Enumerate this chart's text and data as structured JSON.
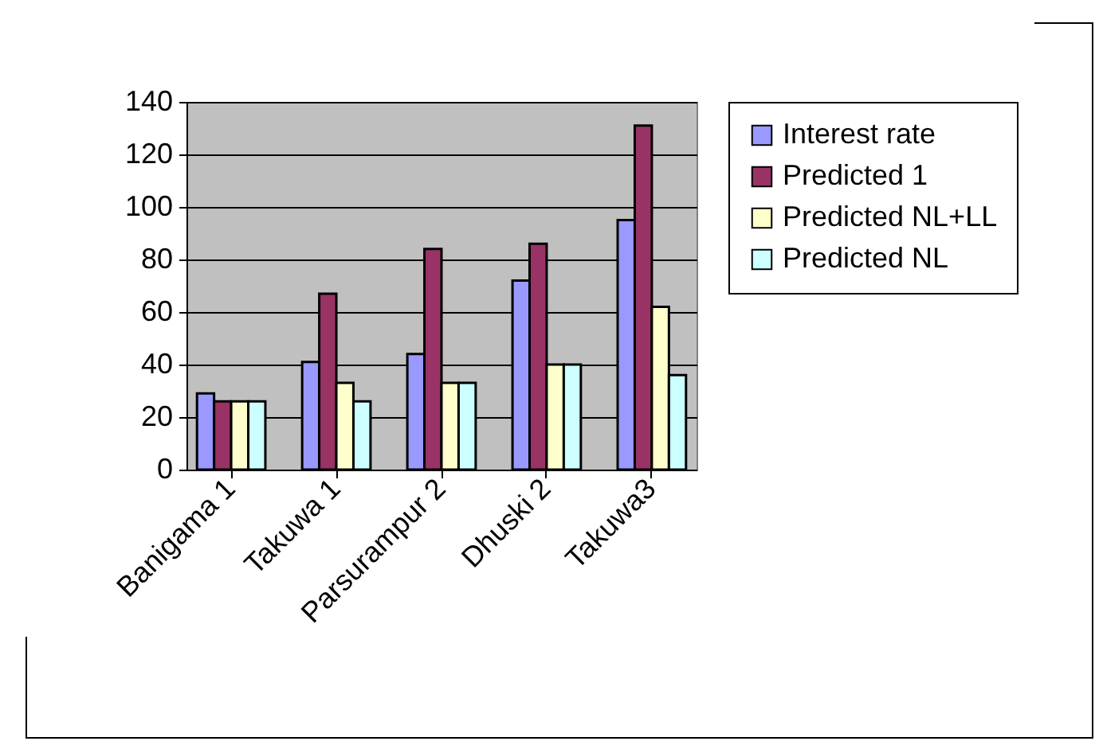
{
  "chart_data": {
    "type": "bar",
    "categories": [
      "Banigama 1",
      "Takuwa 1",
      "Parsurampur 2",
      "Dhuski 2",
      "Takuwa3"
    ],
    "series": [
      {
        "name": "Interest rate",
        "color": "#9999ff",
        "values": [
          29,
          41,
          44,
          72,
          95
        ]
      },
      {
        "name": "Predicted 1",
        "color": "#993366",
        "values": [
          26,
          67,
          84,
          86,
          131
        ]
      },
      {
        "name": "Predicted NL+LL",
        "color": "#ffffcc",
        "values": [
          26,
          33,
          33,
          40,
          62
        ]
      },
      {
        "name": "Predicted NL",
        "color": "#ccffff",
        "values": [
          26,
          26,
          33,
          40,
          36
        ]
      }
    ],
    "ylim": [
      0,
      140
    ],
    "yticks": [
      0,
      20,
      40,
      60,
      80,
      100,
      120,
      140
    ],
    "grid": "y",
    "legend": "right"
  }
}
